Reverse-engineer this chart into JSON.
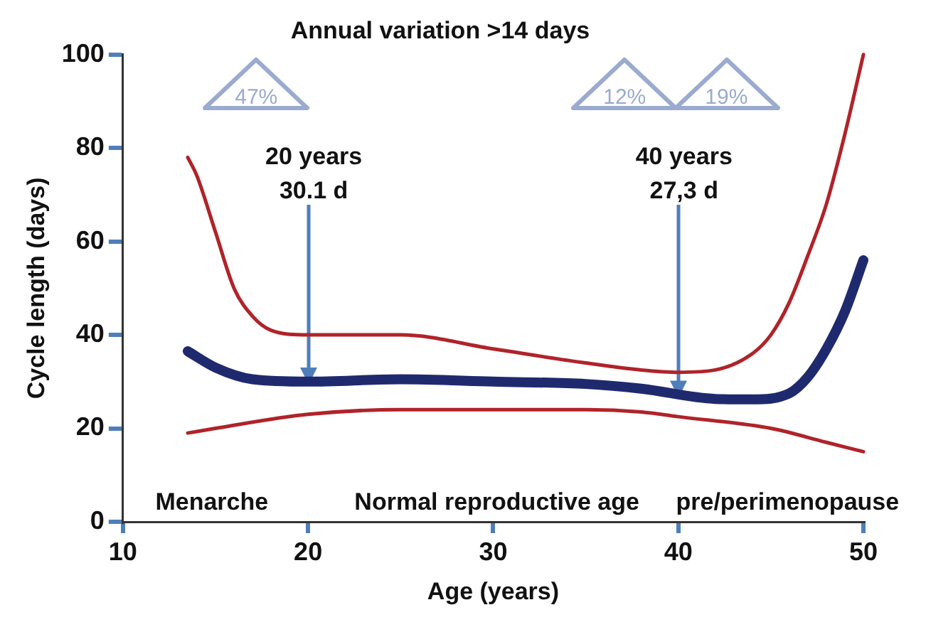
{
  "chart_data": {
    "type": "line",
    "title": "Annual variation >14 days",
    "xlabel": "Age (years)",
    "ylabel": "Cycle length (days)",
    "xlim": [
      10,
      50
    ],
    "ylim": [
      0,
      100
    ],
    "xticks": [
      10,
      20,
      30,
      40,
      50
    ],
    "yticks": [
      0,
      20,
      40,
      60,
      80,
      100
    ],
    "grid": false,
    "legend": false,
    "marker": "none",
    "line_style": "solid",
    "series": [
      {
        "color": "#b0232a",
        "x": [
          13.5,
          14,
          15,
          16,
          17,
          18,
          20,
          25,
          30,
          35,
          38,
          40,
          42,
          44,
          45,
          46,
          47,
          48,
          49,
          50
        ],
        "values": [
          78,
          74,
          62,
          50,
          44,
          41,
          40,
          40,
          37,
          34,
          32.5,
          32,
          32.5,
          36,
          40,
          47,
          57,
          68,
          83,
          100
        ]
      },
      {
        "color": "#b0232a",
        "x": [
          13.5,
          15,
          20,
          25,
          30,
          35,
          38,
          40,
          45,
          48,
          50
        ],
        "values": [
          19,
          20,
          23,
          24,
          24,
          24,
          23.5,
          22.5,
          20,
          17,
          15
        ]
      },
      {
        "color": "#1f2a6e",
        "x": [
          13.5,
          15,
          17,
          20,
          25,
          30,
          35,
          38,
          42,
          44,
          46,
          47,
          48,
          49,
          50
        ],
        "values": [
          36.5,
          33,
          30.5,
          30,
          30.5,
          30,
          29.5,
          28.5,
          26.3,
          26.2,
          27.5,
          31,
          37,
          45,
          56
        ]
      }
    ],
    "annotations": [
      "47%",
      "12%",
      "19%",
      {
        "text": "20 years\n30.1 d",
        "x": 20,
        "y": 30.1
      },
      {
        "text": "40 years\n27,3 d",
        "x": 40,
        "y": 27.3
      },
      "Menarche",
      "Normal reproductive age",
      "pre/perimenopause"
    ]
  }
}
